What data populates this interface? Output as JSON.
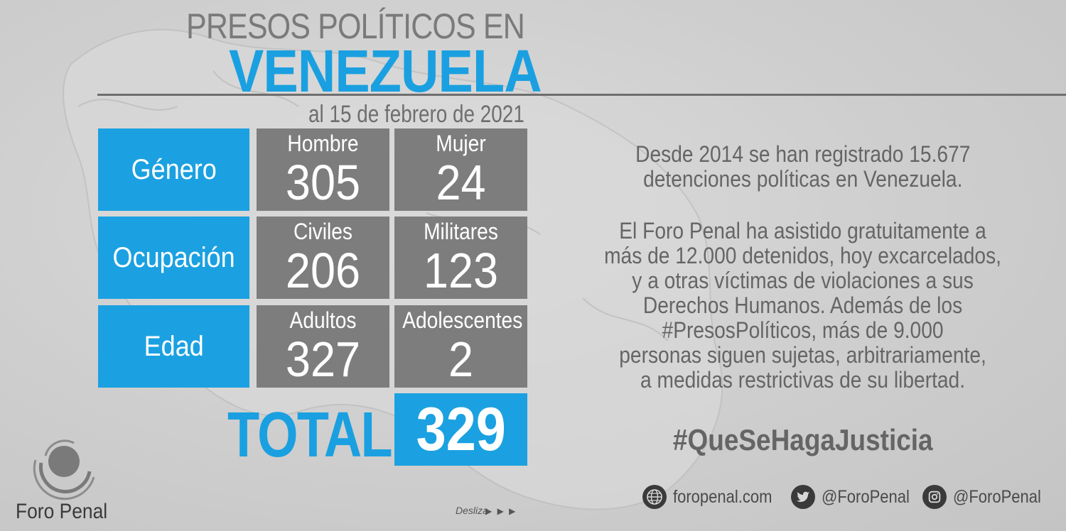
{
  "header": {
    "title_top": "PRESOS POLÍTICOS EN",
    "title_main": "VENEZUELA",
    "date": "al 15 de febrero de 2021"
  },
  "table": {
    "rows": [
      {
        "category": "Género",
        "cells": [
          {
            "label": "Hombre",
            "value": "305"
          },
          {
            "label": "Mujer",
            "value": "24"
          }
        ]
      },
      {
        "category": "Ocupación",
        "cells": [
          {
            "label": "Civiles",
            "value": "206"
          },
          {
            "label": "Militares",
            "value": "123"
          }
        ]
      },
      {
        "category": "Edad",
        "cells": [
          {
            "label": "Adultos",
            "value": "327"
          },
          {
            "label": "Adolescentes",
            "value": "2"
          }
        ]
      }
    ],
    "total_label": "TOTAL",
    "total_value": "329"
  },
  "info": {
    "paragraph1": [
      "Desde 2014 se han registrado 15.677",
      "detenciones políticas en Venezuela."
    ],
    "paragraph2": [
      "El Foro Penal ha asistido gratuitamente a",
      "más de 12.000 detenidos, hoy excarcelados,",
      "y a otras víctimas de violaciones a sus",
      "Derechos Humanos. Además de los",
      "#PresosPolíticos, más de 9.000",
      "personas siguen sujetas, arbitrariamente,",
      "a medidas restrictivas de su libertad."
    ],
    "hashtag": "#QueSeHagaJusticia"
  },
  "footer": {
    "website": "foropenal.com",
    "twitter": "@ForoPenal",
    "instagram": "@ForoPenal",
    "logo_text": "Foro Penal",
    "swipe": "Desliza",
    "swipe_arrows": "▶ ▶ ▶"
  },
  "colors": {
    "accent_blue": "#1ba1e1",
    "cell_gray": "#7d7d7d",
    "text_gray": "#656565",
    "background": "#cfcfcf"
  },
  "icons": {
    "website": "globe-icon",
    "twitter": "twitter-bird-icon",
    "instagram": "instagram-icon",
    "logo": "foro-penal-logo-icon"
  }
}
